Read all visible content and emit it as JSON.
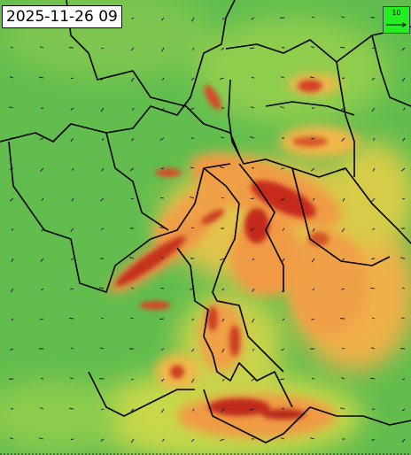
{
  "header": {
    "timestamp": "2025-11-26 09"
  },
  "legend": {
    "wind_scale_label": "10"
  }
}
